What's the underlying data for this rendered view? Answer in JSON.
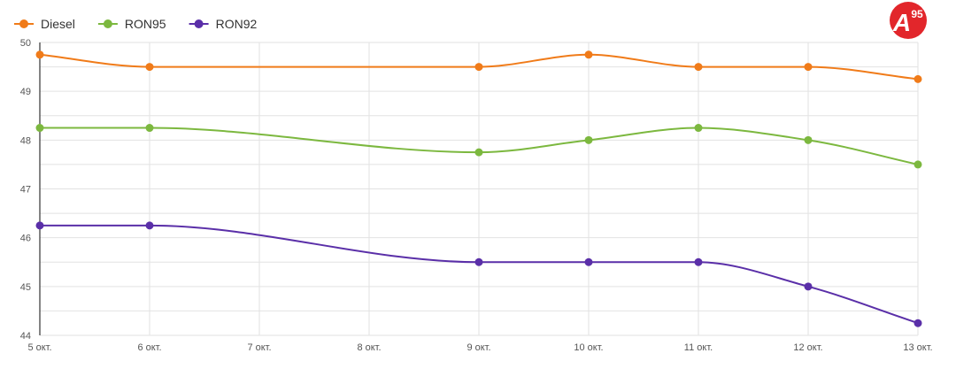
{
  "chart_data": {
    "type": "line",
    "categories": [
      "5 окт.",
      "6 окт.",
      "7 окт.",
      "8 окт.",
      "9 окт.",
      "10 окт.",
      "11 окт.",
      "12 окт.",
      "13 окт."
    ],
    "series": [
      {
        "name": "Diesel",
        "color": "#f07b19",
        "values": [
          49.75,
          49.5,
          null,
          null,
          49.5,
          49.75,
          49.5,
          49.5,
          49.25
        ]
      },
      {
        "name": "RON95",
        "color": "#7cb83f",
        "values": [
          48.25,
          48.25,
          null,
          null,
          47.75,
          48.0,
          48.25,
          48.0,
          47.5
        ]
      },
      {
        "name": "RON92",
        "color": "#5a2fa8",
        "values": [
          46.25,
          46.25,
          null,
          null,
          45.5,
          45.5,
          45.5,
          45.0,
          44.25
        ]
      }
    ],
    "yticks": [
      "44",
      "45",
      "46",
      "47",
      "48",
      "49",
      "50"
    ],
    "ylim": [
      44,
      50
    ],
    "grid": true,
    "legend": "top-left"
  },
  "logo": {
    "letter": "A",
    "number": "95",
    "color": "#e2262b"
  }
}
